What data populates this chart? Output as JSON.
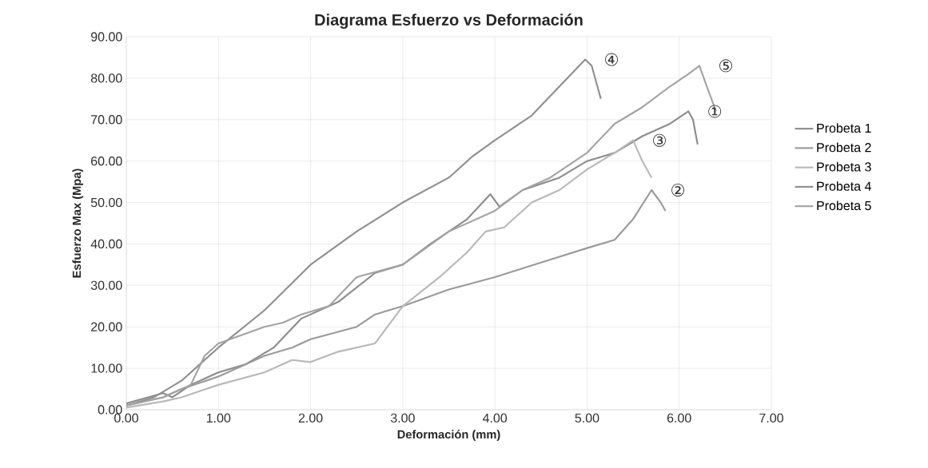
{
  "chart_data": {
    "type": "line",
    "title": "Diagrama Esfuerzo vs Deformación",
    "xlabel": "Deformación (mm)",
    "ylabel": "Esfuerzo Max (Mpa)",
    "xlim": [
      0,
      7
    ],
    "ylim": [
      0,
      90
    ],
    "xticks": [
      {
        "value": 0,
        "label": "0.00"
      },
      {
        "value": 1,
        "label": "1.00"
      },
      {
        "value": 2,
        "label": "2.00"
      },
      {
        "value": 3,
        "label": "3.00"
      },
      {
        "value": 4,
        "label": "4.00"
      },
      {
        "value": 5,
        "label": "5.00"
      },
      {
        "value": 6,
        "label": "6.00"
      },
      {
        "value": 7,
        "label": "7.00"
      }
    ],
    "yticks": [
      {
        "value": 0,
        "label": "0.00"
      },
      {
        "value": 10,
        "label": "10.00"
      },
      {
        "value": 20,
        "label": "20.00"
      },
      {
        "value": 30,
        "label": "30.00"
      },
      {
        "value": 40,
        "label": "40.00"
      },
      {
        "value": 50,
        "label": "50.00"
      },
      {
        "value": 60,
        "label": "60.00"
      },
      {
        "value": 70,
        "label": "70.00"
      },
      {
        "value": 80,
        "label": "80.00"
      },
      {
        "value": 90,
        "label": "90.00"
      }
    ],
    "grid": true,
    "legend": "right",
    "marker": "none",
    "line_style": "solid",
    "series": [
      {
        "name": "Probeta 1",
        "color": "#8c8c8c",
        "x": [
          0,
          0.4,
          0.5,
          0.7,
          1.0,
          1.3,
          1.6,
          1.9,
          2.3,
          2.7,
          3.0,
          3.3,
          3.7,
          3.95,
          4.05,
          4.3,
          4.7,
          5.0,
          5.3,
          5.6,
          5.9,
          6.1,
          6.15,
          6.2
        ],
        "values": [
          1.5,
          4,
          3,
          6,
          9,
          11,
          15,
          22,
          26,
          33,
          35,
          40,
          46,
          52,
          49,
          53,
          56,
          60,
          62,
          66,
          69,
          72,
          70,
          64
        ]
      },
      {
        "name": "Probeta 2",
        "color": "#9a9a9a",
        "x": [
          0,
          0.4,
          0.6,
          1.0,
          1.5,
          1.8,
          2.0,
          2.5,
          2.7,
          3.0,
          3.5,
          4.0,
          4.5,
          5.0,
          5.3,
          5.5,
          5.7,
          5.8,
          5.85
        ],
        "values": [
          1,
          3,
          5,
          8,
          13,
          15,
          17,
          20,
          23,
          25,
          29,
          32,
          35.5,
          39,
          41,
          46,
          53,
          50,
          48
        ]
      },
      {
        "name": "Probeta 3",
        "color": "#b8b8b8",
        "x": [
          0,
          0.4,
          0.6,
          1.0,
          1.5,
          1.8,
          2.0,
          2.3,
          2.7,
          3.0,
          3.4,
          3.7,
          3.9,
          4.1,
          4.4,
          4.7,
          5.0,
          5.3,
          5.5,
          5.6,
          5.7
        ],
        "values": [
          0.5,
          2,
          3,
          6,
          9,
          12,
          11.5,
          14,
          16,
          25,
          32,
          38,
          43,
          44,
          50,
          53,
          58,
          62,
          65,
          60,
          56
        ]
      },
      {
        "name": "Probeta 4",
        "color": "#8f8f8f",
        "x": [
          0,
          0.3,
          0.6,
          1.0,
          1.5,
          2.0,
          2.5,
          3.0,
          3.5,
          3.75,
          4.0,
          4.4,
          4.7,
          4.98,
          5.05,
          5.15
        ],
        "values": [
          1,
          3,
          7,
          15,
          24,
          35,
          43,
          50,
          56,
          61,
          65,
          71,
          78,
          84.5,
          83,
          75
        ]
      },
      {
        "name": "Probeta 5",
        "color": "#a3a3a3",
        "x": [
          0,
          0.4,
          0.7,
          0.85,
          1.0,
          1.5,
          1.7,
          1.9,
          2.2,
          2.5,
          3.0,
          3.5,
          4.0,
          4.3,
          4.6,
          5.0,
          5.3,
          5.6,
          5.9,
          6.1,
          6.22,
          6.3,
          6.4
        ],
        "values": [
          1,
          3,
          6,
          13,
          16,
          20,
          21,
          23,
          25,
          32,
          35,
          43,
          48,
          53,
          56,
          62,
          69,
          73,
          78,
          81,
          83,
          78,
          72
        ]
      }
    ],
    "annotations": [
      {
        "text": "①",
        "x": 6.1,
        "y": 72
      },
      {
        "text": "②",
        "x": 5.7,
        "y": 53
      },
      {
        "text": "③",
        "x": 5.5,
        "y": 65
      },
      {
        "text": "④",
        "x": 4.98,
        "y": 84.5
      },
      {
        "text": "⑤",
        "x": 6.22,
        "y": 83
      }
    ]
  }
}
